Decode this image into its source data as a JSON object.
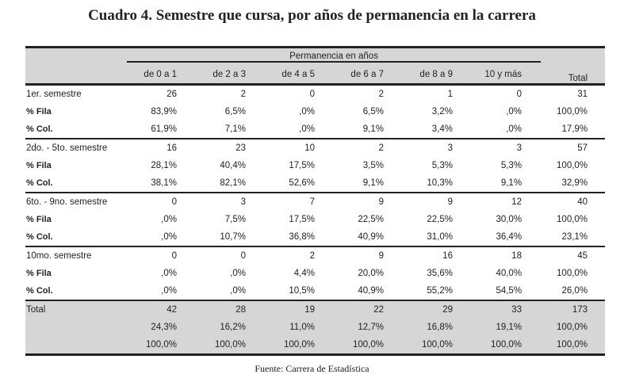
{
  "title": "Cuadro 4. Semestre que cursa, por años de permanencia en la carrera",
  "header": {
    "group": "Permanencia en años",
    "columns": [
      "de 0 a 1",
      "de 2 a 3",
      "de 4 a 5",
      "de 6 a 7",
      "de 8 a 9",
      "10 y más"
    ],
    "total": "Total"
  },
  "groups": [
    {
      "label": "1er. semestre",
      "rows": [
        {
          "label": "",
          "values": [
            "26",
            "2",
            "0",
            "2",
            "1",
            "0",
            "31"
          ]
        },
        {
          "label": "% Fila",
          "values": [
            "83,9%",
            "6,5%",
            ",0%",
            "6,5%",
            "3,2%",
            ",0%",
            "100,0%"
          ]
        },
        {
          "label": "% Col.",
          "values": [
            "61,9%",
            "7,1%",
            ",0%",
            "9,1%",
            "3,4%",
            ",0%",
            "17,9%"
          ]
        }
      ]
    },
    {
      "label": "2do. - 5to. semestre",
      "rows": [
        {
          "label": "",
          "values": [
            "16",
            "23",
            "10",
            "2",
            "3",
            "3",
            "57"
          ]
        },
        {
          "label": "% Fila",
          "values": [
            "28,1%",
            "40,4%",
            "17,5%",
            "3,5%",
            "5,3%",
            "5,3%",
            "100,0%"
          ]
        },
        {
          "label": "% Col.",
          "values": [
            "38,1%",
            "82,1%",
            "52,6%",
            "9,1%",
            "10,3%",
            "9,1%",
            "32,9%"
          ]
        }
      ]
    },
    {
      "label": "6to. - 9no. semestre",
      "rows": [
        {
          "label": "",
          "values": [
            "0",
            "3",
            "7",
            "9",
            "9",
            "12",
            "40"
          ]
        },
        {
          "label": "% Fila",
          "values": [
            ",0%",
            "7,5%",
            "17,5%",
            "22,5%",
            "22,5%",
            "30,0%",
            "100,0%"
          ]
        },
        {
          "label": "% Col.",
          "values": [
            ",0%",
            "10,7%",
            "36,8%",
            "40,9%",
            "31,0%",
            "36,4%",
            "23,1%"
          ]
        }
      ]
    },
    {
      "label": "10mo. semestre",
      "rows": [
        {
          "label": "",
          "values": [
            "0",
            "0",
            "2",
            "9",
            "16",
            "18",
            "45"
          ]
        },
        {
          "label": "% Fila",
          "values": [
            ",0%",
            ",0%",
            "4,4%",
            "20,0%",
            "35,6%",
            "40,0%",
            "100,0%"
          ]
        },
        {
          "label": "% Col.",
          "values": [
            ",0%",
            ",0%",
            "10,5%",
            "40,9%",
            "55,2%",
            "54,5%",
            "26,0%"
          ]
        }
      ]
    }
  ],
  "total": {
    "label": "Total",
    "rows": [
      [
        "42",
        "28",
        "19",
        "22",
        "29",
        "33",
        "173"
      ],
      [
        "24,3%",
        "16,2%",
        "11,0%",
        "12,7%",
        "16,8%",
        "19,1%",
        "100,0%"
      ],
      [
        "100,0%",
        "100,0%",
        "100,0%",
        "100,0%",
        "100,0%",
        "100,0%",
        "100,0%"
      ]
    ]
  },
  "source": "Fuente: Carrera de Estadística"
}
